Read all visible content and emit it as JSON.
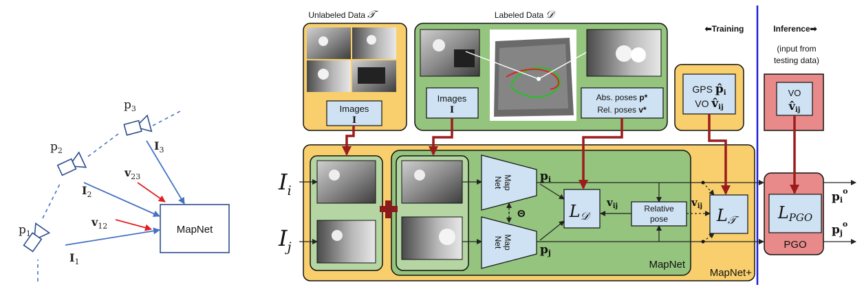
{
  "left_panel": {
    "p1": "p",
    "p1_sub": "1",
    "p2": "p",
    "p2_sub": "2",
    "p3": "p",
    "p3_sub": "3",
    "I1": "I",
    "I1_sub": "1",
    "I2": "I",
    "I2_sub": "2",
    "I3": "I",
    "I3_sub": "3",
    "v12": "v",
    "v12_sub": "12",
    "v23": "v",
    "v23_sub": "23",
    "mapnet_box": "MapNet"
  },
  "unlabeled": {
    "title": "Unlabeled Data",
    "symbol": "𝒯",
    "images_label": "Images",
    "images_symbol": "I"
  },
  "labeled": {
    "title": "Labeled Data",
    "symbol": "𝒟",
    "images_label": "Images",
    "images_symbol": "I",
    "abs_poses": "Abs. poses ",
    "abs_symbol": "p*",
    "rel_poses": "Rel. poses ",
    "rel_symbol": "v*"
  },
  "gps_box": {
    "gps": "GPS ",
    "gps_symbol": "p̂",
    "vo": "VO ",
    "vo_symbol": "v̂",
    "sub_i": "i",
    "sub_ij": "ij"
  },
  "training": "⬅Training",
  "inference": "Inference➡",
  "inference_note_1": "(input from",
  "inference_note_2": "testing data)",
  "vo_box": {
    "label": "VO",
    "symbol": "v̂",
    "sub": "ij"
  },
  "main": {
    "Ii": "I",
    "Ii_sub": "i",
    "Ij": "I",
    "Ij_sub": "j",
    "map_net": "Map",
    "map_net_2": "Net",
    "theta": "Θ",
    "pi": "p",
    "pi_sub": "i",
    "pj": "p",
    "pj_sub": "j",
    "LD": "L",
    "LD_sub": "𝒟",
    "vij": "v",
    "vij_sub": "ij",
    "relative_1": "Relative",
    "relative_2": "pose",
    "LT": "L",
    "LT_sub": "𝒯",
    "mapnet_label": "MapNet",
    "mapnet_plus_label": "MapNet+",
    "LPGO": "L",
    "LPGO_sub": "PGO",
    "pgo_label": "PGO",
    "pio": "p",
    "pio_sub": "i",
    "pio_sup": "o",
    "pjo": "p",
    "pjo_sub": "j",
    "pjo_sup": "o"
  },
  "colors": {
    "yellow": "#f9cf6d",
    "green": "#94c47d",
    "light_green": "#b5d6a3",
    "blue_box": "#cfe2f3",
    "red": "#e98a8a",
    "dark_red": "#9b1c1c",
    "blue_arrow": "#4472c4",
    "divider": "#1f1fd6"
  }
}
